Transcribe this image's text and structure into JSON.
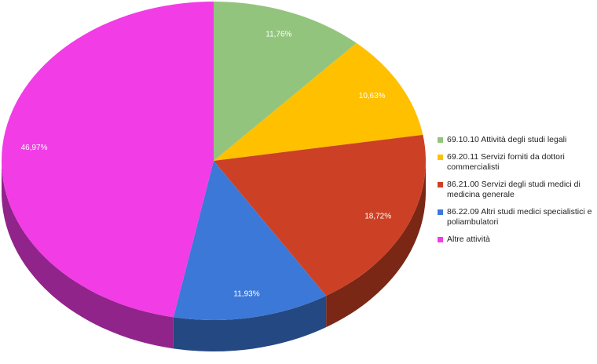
{
  "chart_data": {
    "type": "pie",
    "categories": [
      "69.10.10 Attività degli studi legali",
      "69.20.11 Servizi forniti da dottori commercialisti",
      "86.21.00 Servizi degli studi medici di medicina generale",
      "86.22.09 Altri studi medici specialistici e poliambulatori",
      "Altre attività"
    ],
    "values": [
      11.76,
      10.63,
      18.72,
      11.93,
      46.97
    ],
    "value_labels": [
      "11,76%",
      "10,63%",
      "18,72%",
      "11,93%",
      "46,97%"
    ],
    "colors": [
      "#93c47d",
      "#ffc000",
      "#cc4125",
      "#3c78d8",
      "#f23ce6"
    ],
    "legend": "right"
  }
}
